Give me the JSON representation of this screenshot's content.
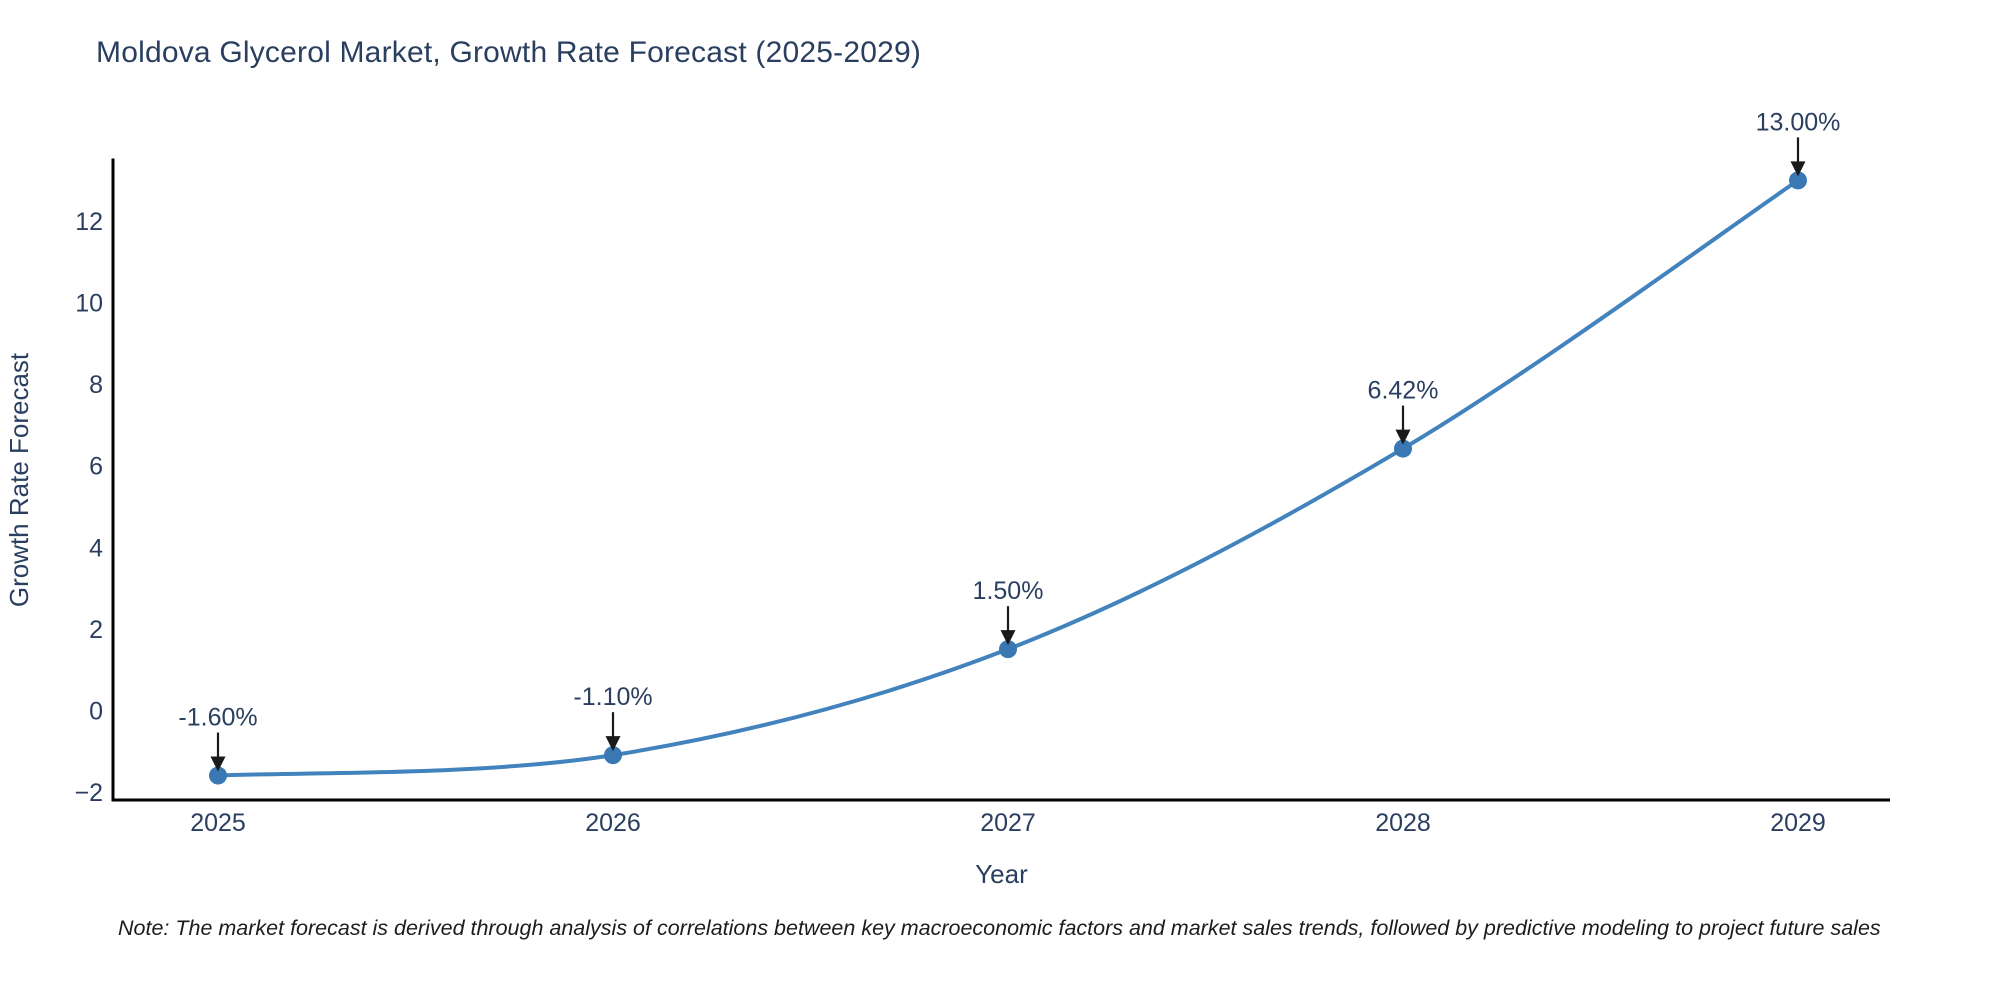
{
  "page": {
    "background": "#ffffff"
  },
  "header": {
    "title": "Moldova Glycerol Market, Growth Rate Forecast (2025-2029)"
  },
  "note": {
    "text": "Note: The market forecast is derived through analysis of correlations between key macroeconomic factors and market sales trends, followed by predictive modeling to project future sales"
  },
  "chart_data": {
    "type": "line",
    "title": "Moldova Glycerol Market, Growth Rate Forecast (2025-2029)",
    "x": [
      "2025",
      "2026",
      "2027",
      "2028",
      "2029"
    ],
    "series": [
      {
        "name": "Growth Rate Forecast",
        "values": [
          -1.6,
          -1.1,
          1.5,
          6.42,
          13.0
        ]
      }
    ],
    "point_labels": [
      "-1.60%",
      "-1.10%",
      "1.50%",
      "6.42%",
      "13.00%"
    ],
    "xlabel": "Year",
    "ylabel": "Growth Rate Forecast",
    "ylim": [
      -2.2,
      13.5
    ],
    "yticks": [
      -2,
      0,
      2,
      4,
      6,
      8,
      10,
      12
    ],
    "line_shape": "spline",
    "grid": false,
    "legend": "none",
    "colors": {
      "line": "#4283bd",
      "marker": "#3a78b3",
      "axis": "#000000",
      "tick_text": "#2a3f5f",
      "annotation_text": "#2a3f5f",
      "arrow": "#1a1a1a",
      "title_text": "#2a3f5f"
    }
  }
}
